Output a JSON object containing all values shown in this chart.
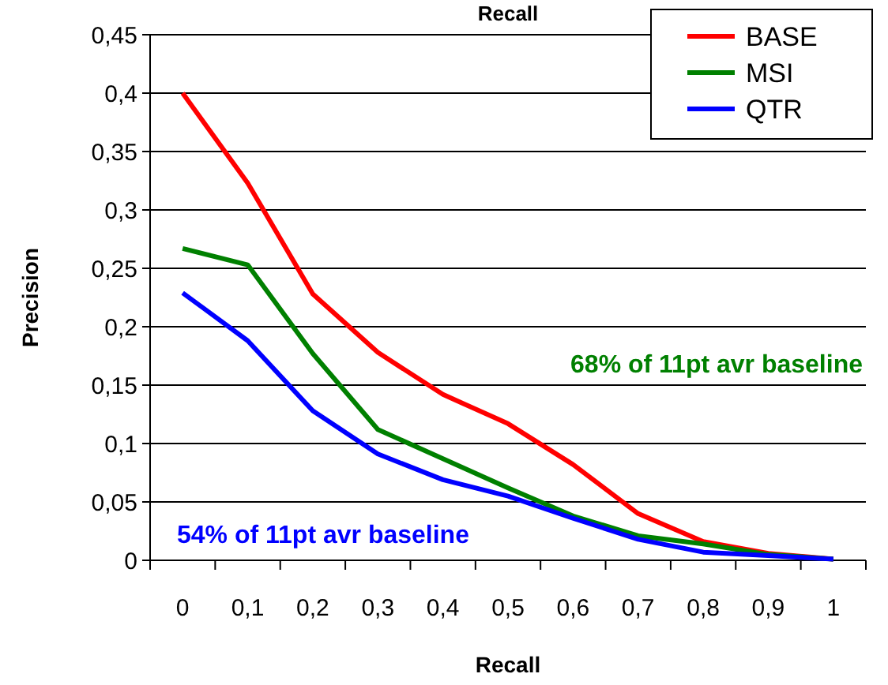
{
  "chart_data": {
    "type": "line",
    "title": "Recall",
    "xlabel": "Recall",
    "ylabel": "Precision",
    "categories": [
      "0",
      "0,1",
      "0,2",
      "0,3",
      "0,4",
      "0,5",
      "0,6",
      "0,7",
      "0,8",
      "0,9",
      "1"
    ],
    "series": [
      {
        "name": "BASE",
        "color": "#ff0000",
        "values": [
          0.4,
          0.323,
          0.228,
          0.178,
          0.142,
          0.117,
          0.082,
          0.04,
          0.016,
          0.006,
          0.001
        ]
      },
      {
        "name": "MSI",
        "color": "#008000",
        "values": [
          0.267,
          0.253,
          0.177,
          0.112,
          0.087,
          0.062,
          0.038,
          0.021,
          0.014,
          0.005,
          0.001
        ]
      },
      {
        "name": "QTR",
        "color": "#0000ff",
        "values": [
          0.229,
          0.188,
          0.128,
          0.091,
          0.069,
          0.055,
          0.036,
          0.018,
          0.007,
          0.004,
          0.001
        ]
      }
    ],
    "ylim": [
      0,
      0.45
    ],
    "yticks": [
      0,
      {
        "value": 0.05,
        "label": "0,05"
      },
      {
        "value": 0.1,
        "label": "0,1"
      },
      {
        "value": 0.15,
        "label": "0,15"
      },
      {
        "value": 0.2,
        "label": "0,2"
      },
      {
        "value": 0.25,
        "label": "0,25"
      },
      {
        "value": 0.3,
        "label": "0,3"
      },
      {
        "value": 0.35,
        "label": "0,35"
      },
      {
        "value": 0.4,
        "label": "0,4"
      },
      {
        "value": 0.45,
        "label": "0,45"
      }
    ],
    "grid": "y",
    "legend": "top right",
    "marker": "none",
    "line_style": "solid",
    "annotations": [
      "68% of 11pt avr baseline",
      "54% of 11pt avr baseline"
    ]
  }
}
